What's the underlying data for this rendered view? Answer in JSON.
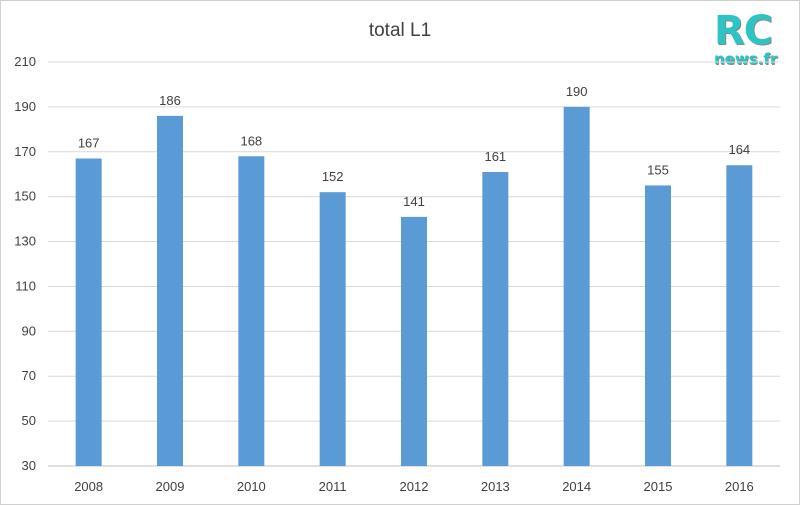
{
  "chart_data": {
    "type": "bar",
    "title": "total L1",
    "categories": [
      "2008",
      "2009",
      "2010",
      "2011",
      "2012",
      "2013",
      "2014",
      "2015",
      "2016"
    ],
    "values": [
      167,
      186,
      168,
      152,
      141,
      161,
      190,
      155,
      164
    ],
    "y_ticks": [
      "210",
      "190",
      "170",
      "150",
      "130",
      "110",
      "90",
      "70",
      "50",
      "30"
    ],
    "ylim": [
      30,
      210
    ],
    "xlabel": "",
    "ylabel": "",
    "grid": true,
    "legend": "none",
    "bar_color": "#5b9bd5",
    "grid_color": "#d9d9d9"
  },
  "logo": {
    "top": "RC",
    "bottom": "news.fr"
  }
}
